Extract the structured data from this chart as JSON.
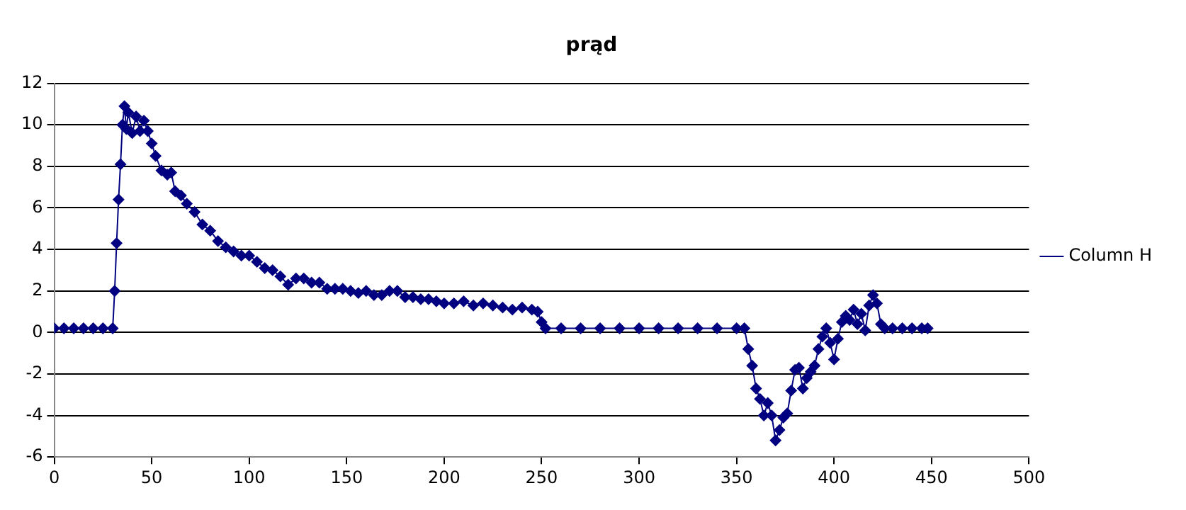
{
  "chart_data": {
    "type": "line",
    "title": "prąd",
    "marker": "diamond",
    "grid": "y",
    "legend": "right",
    "xlim": [
      0,
      500
    ],
    "xticks": [
      0,
      50,
      100,
      150,
      200,
      250,
      300,
      350,
      400,
      450,
      500
    ],
    "ylim": [
      -6,
      12
    ],
    "yticks": [
      -6,
      -4,
      -2,
      0,
      2,
      4,
      6,
      8,
      10,
      12
    ],
    "series": [
      {
        "name": "Column H",
        "color": "#000080",
        "x": [
          0,
          5,
          10,
          15,
          20,
          25,
          30,
          31,
          32,
          33,
          34,
          35,
          36,
          37,
          38,
          40,
          42,
          44,
          46,
          48,
          50,
          52,
          55,
          58,
          60,
          62,
          65,
          68,
          72,
          76,
          80,
          84,
          88,
          92,
          96,
          100,
          104,
          108,
          112,
          116,
          120,
          124,
          128,
          132,
          136,
          140,
          144,
          148,
          152,
          156,
          160,
          164,
          168,
          172,
          176,
          180,
          184,
          188,
          192,
          196,
          200,
          205,
          210,
          215,
          220,
          225,
          230,
          235,
          240,
          245,
          248,
          250,
          252,
          260,
          270,
          280,
          290,
          300,
          310,
          320,
          330,
          340,
          350,
          354,
          356,
          358,
          360,
          362,
          364,
          366,
          368,
          370,
          372,
          374,
          376,
          378,
          380,
          382,
          384,
          386,
          388,
          390,
          392,
          394,
          396,
          398,
          400,
          402,
          404,
          406,
          408,
          410,
          412,
          414,
          416,
          418,
          420,
          422,
          424,
          426,
          430,
          435,
          440,
          445,
          448
        ],
        "values": [
          0.2,
          0.2,
          0.2,
          0.2,
          0.2,
          0.2,
          0.2,
          2,
          4.3,
          6.4,
          8.1,
          10,
          10.9,
          9.8,
          10.6,
          9.6,
          10.4,
          9.7,
          10.2,
          9.7,
          9.1,
          8.5,
          7.8,
          7.6,
          7.7,
          6.8,
          6.6,
          6.2,
          5.8,
          5.2,
          4.9,
          4.4,
          4.1,
          3.9,
          3.7,
          3.7,
          3.4,
          3.1,
          3,
          2.7,
          2.3,
          2.6,
          2.6,
          2.4,
          2.4,
          2.1,
          2.1,
          2.1,
          2,
          1.9,
          2,
          1.8,
          1.8,
          2,
          2,
          1.7,
          1.7,
          1.6,
          1.6,
          1.5,
          1.4,
          1.4,
          1.5,
          1.3,
          1.4,
          1.3,
          1.2,
          1.1,
          1.2,
          1.1,
          1,
          0.5,
          0.2,
          0.2,
          0.2,
          0.2,
          0.2,
          0.2,
          0.2,
          0.2,
          0.2,
          0.2,
          0.2,
          0.2,
          -0.8,
          -1.6,
          -2.7,
          -3.2,
          -4,
          -3.4,
          -4,
          -5.2,
          -4.7,
          -4.1,
          -3.9,
          -2.8,
          -1.8,
          -1.7,
          -2.7,
          -2.2,
          -1.9,
          -1.6,
          -0.8,
          -0.2,
          0.2,
          -0.5,
          -1.3,
          -0.3,
          0.5,
          0.8,
          0.6,
          1.1,
          0.4,
          0.9,
          0.1,
          1.3,
          1.8,
          1.4,
          0.4,
          0.2,
          0.2,
          0.2,
          0.2,
          0.2,
          0.2
        ]
      }
    ]
  }
}
